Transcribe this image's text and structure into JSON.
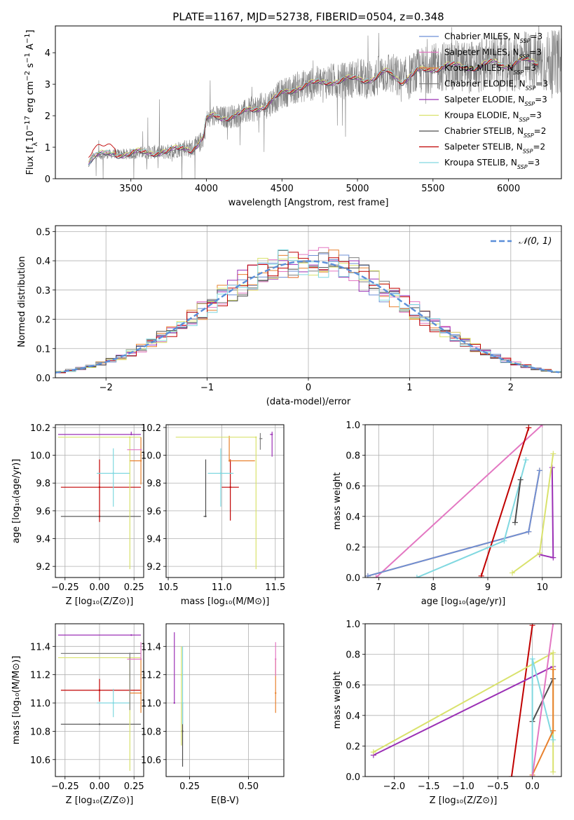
{
  "figure": {
    "title": "PLATE=1167, MJD=52738, FIBERID=0504, z=0.348"
  },
  "colors": {
    "Chabrier MILES": "#6e8fd6",
    "Salpeter MILES": "#e377c2",
    "Kroupa MILES": "#e8812e",
    "Chabrier ELODIE": "#7f7f7f",
    "Salpeter ELODIE": "#9b30b5",
    "Kroupa ELODIE": "#d9e26c",
    "Chabrier STELIB": "#4d4d4d",
    "Salpeter STELIB": "#c00000",
    "Kroupa STELIB": "#80d8e0",
    "normal_curve": "#5b8fd9"
  },
  "chart_data": [
    {
      "id": "spectrum",
      "type": "line",
      "title": "PLATE=1167, MJD=52738, FIBERID=0504, z=0.348",
      "xlabel": "wavelength [Angstrom, rest frame]",
      "ylabel_parts": [
        "Flux [f",
        "λ",
        "10",
        "−17",
        " erg cm",
        "−2",
        " s",
        "−1",
        " A",
        "−1",
        "]"
      ],
      "xlim": [
        3000,
        6350
      ],
      "ylim": [
        0,
        4.85
      ],
      "xticks": [
        "3500",
        "4000",
        "4500",
        "5000",
        "5500",
        "6000"
      ],
      "xtick_values": [
        3500,
        4000,
        4500,
        5000,
        5500,
        6000
      ],
      "yticks": [
        "0",
        "1",
        "2",
        "3",
        "4"
      ],
      "ytick_values": [
        0,
        1,
        2,
        3,
        4
      ],
      "legend_position": "top-right",
      "legend": [
        {
          "label": "Chabrier MILES, N",
          "sub": "SSP",
          "tail": "=3",
          "color_key": "Chabrier MILES"
        },
        {
          "label": "Salpeter MILES, N",
          "sub": "SSP",
          "tail": "=3",
          "color_key": "Salpeter MILES"
        },
        {
          "label": "Kroupa MILES, N",
          "sub": "SSP",
          "tail": "=3",
          "color_key": "Kroupa MILES"
        },
        {
          "label": "Chabrier ELODIE, N",
          "sub": "SSP",
          "tail": "=3",
          "color_key": "Chabrier ELODIE"
        },
        {
          "label": "Salpeter ELODIE, N",
          "sub": "SSP",
          "tail": "=3",
          "color_key": "Salpeter ELODIE"
        },
        {
          "label": "Kroupa ELODIE, N",
          "sub": "SSP",
          "tail": "=3",
          "color_key": "Kroupa ELODIE"
        },
        {
          "label": "Chabrier STELIB, N",
          "sub": "SSP",
          "tail": "=2",
          "color_key": "Chabrier STELIB"
        },
        {
          "label": "Salpeter STELIB, N",
          "sub": "SSP",
          "tail": "=2",
          "color_key": "Salpeter STELIB"
        },
        {
          "label": "Kroupa STELIB, N",
          "sub": "SSP",
          "tail": "=3",
          "color_key": "Kroupa STELIB"
        }
      ],
      "model_continuum": {
        "x": [
          3220,
          3250,
          3300,
          3400,
          3480,
          3550,
          3650,
          3750,
          3850,
          3900,
          3950,
          3980,
          4000,
          4050,
          4100,
          4200,
          4300,
          4400,
          4500,
          4600,
          4700,
          4800,
          4900,
          5000,
          5100,
          5200,
          5300,
          5400,
          5500,
          5600,
          5700,
          5800,
          5900,
          6000,
          6100,
          6200
        ],
        "y": [
          0.5,
          0.7,
          0.75,
          0.8,
          0.78,
          0.82,
          0.85,
          0.85,
          1.0,
          0.95,
          1.1,
          1.3,
          1.85,
          2.0,
          1.95,
          2.0,
          2.2,
          2.35,
          2.7,
          2.9,
          3.0,
          3.1,
          3.1,
          3.2,
          3.15,
          3.4,
          3.1,
          3.4,
          3.5,
          3.6,
          3.55,
          3.55,
          3.7,
          3.6,
          3.75,
          3.7
        ]
      },
      "data_range": [
        3220,
        6350
      ]
    },
    {
      "id": "residuals",
      "type": "bar",
      "xlabel": "(data-model)/error",
      "ylabel": "Normed distribution",
      "xlim": [
        -2.5,
        2.5
      ],
      "ylim": [
        0,
        0.52
      ],
      "xticks": [
        "−2",
        "−1",
        "0",
        "1",
        "2"
      ],
      "xtick_values": [
        -2,
        -1,
        0,
        1,
        2
      ],
      "yticks": [
        "0.0",
        "0.1",
        "0.2",
        "0.3",
        "0.4",
        "0.5"
      ],
      "ytick_values": [
        0,
        0.1,
        0.2,
        0.3,
        0.4,
        0.5
      ],
      "legend_position": "top-right",
      "legend_label": "𝒩(0, 1)",
      "bin_width": 0.1,
      "normal_curve": {
        "mean": 0,
        "sigma": 1
      }
    },
    {
      "id": "age-vs-Z",
      "type": "scatter",
      "xlabel": "Z [log₁₀(Z/Z⊙)]",
      "ylabel": "age  [log₁₀(age/yr)]",
      "xlim": [
        -0.32,
        0.32
      ],
      "ylim": [
        9.12,
        10.22
      ],
      "xticks": [
        "−0.25",
        "0.00",
        "0.25"
      ],
      "xtick_values": [
        -0.25,
        0,
        0.25
      ],
      "yticks": [
        "9.2",
        "9.4",
        "9.6",
        "9.8",
        "10.0",
        "10.2"
      ],
      "ytick_values": [
        9.2,
        9.4,
        9.6,
        9.8,
        10.0,
        10.2
      ],
      "points": [
        {
          "series": "Chabrier STELIB",
          "x": 0.0,
          "y": 9.56,
          "xerr": [
            0.28,
            0.3
          ],
          "yerr": [
            0,
            0
          ]
        },
        {
          "series": "Salpeter STELIB",
          "x": 0.0,
          "y": 9.77,
          "xerr": [
            0.28,
            0.3
          ],
          "yerr": [
            0.25,
            0.2
          ]
        },
        {
          "series": "Kroupa STELIB",
          "x": 0.1,
          "y": 9.87,
          "xerr": [
            0.12,
            0.12
          ],
          "yerr": [
            0.24,
            0.18
          ]
        },
        {
          "series": "Kroupa ELODIE",
          "x": 0.22,
          "y": 10.13,
          "xerr": [
            0.52,
            0.08
          ],
          "yerr": [
            0.95,
            0.0
          ]
        },
        {
          "series": "Salpeter ELODIE",
          "x": 0.23,
          "y": 10.15,
          "xerr": [
            0.53,
            0.07
          ],
          "yerr": [
            0,
            0.02
          ]
        },
        {
          "series": "Kroupa MILES",
          "x": 0.3,
          "y": 9.96,
          "xerr": [
            0.08,
            0.0
          ],
          "yerr": [
            0.17,
            0.17
          ]
        },
        {
          "series": "Salpeter MILES",
          "x": 0.3,
          "y": 10.04,
          "xerr": [
            0.1,
            0.0
          ],
          "yerr": [
            0,
            0
          ]
        }
      ]
    },
    {
      "id": "age-vs-mass",
      "type": "scatter",
      "xlabel": "mass [log₁₀(M/M⊙)]",
      "ylabel": "",
      "xlim": [
        10.48,
        11.58
      ],
      "ylim": [
        9.12,
        10.22
      ],
      "xticks": [
        "10.5",
        "11.0",
        "11.5"
      ],
      "xtick_values": [
        10.5,
        11.0,
        11.5
      ],
      "yticks": [
        "9.2",
        "9.4",
        "9.6",
        "9.8",
        "10.0",
        "10.2"
      ],
      "ytick_values": [
        9.2,
        9.4,
        9.6,
        9.8,
        10.0,
        10.2
      ],
      "points": [
        {
          "series": "Chabrier STELIB",
          "x": 10.85,
          "y": 9.56,
          "xerr": [
            0.02,
            0.0
          ],
          "yerr": [
            0.0,
            0.41
          ]
        },
        {
          "series": "Salpeter STELIB",
          "x": 11.08,
          "y": 9.77,
          "xerr": [
            0.08,
            0.08
          ],
          "yerr": [
            0.24,
            0.2
          ]
        },
        {
          "series": "Kroupa STELIB",
          "x": 10.99,
          "y": 9.87,
          "xerr": [
            0.12,
            0.12
          ],
          "yerr": [
            0.24,
            0.18
          ]
        },
        {
          "series": "Kroupa MILES",
          "x": 11.07,
          "y": 9.96,
          "xerr": [
            0.0,
            0.24
          ],
          "yerr": [
            0.0,
            0.18
          ]
        },
        {
          "series": "Kroupa ELODIE",
          "x": 11.32,
          "y": 10.13,
          "xerr": [
            0.75,
            0.0
          ],
          "yerr": [
            0.95,
            0.0
          ]
        },
        {
          "series": "Salpeter ELODIE",
          "x": 11.47,
          "y": 10.15,
          "xerr": [
            0.02,
            0.0
          ],
          "yerr": [
            0.16,
            0.02
          ]
        },
        {
          "series": "Chabrier ELODIE",
          "x": 11.36,
          "y": 10.12,
          "xerr": [
            0.0,
            0.02
          ],
          "yerr": [
            0.08,
            0.04
          ]
        }
      ]
    },
    {
      "id": "mass-weight-vs-age",
      "type": "line",
      "xlabel": "age  [log₁₀(age/yr)]",
      "ylabel": "mass weight",
      "xlim": [
        6.75,
        10.35
      ],
      "ylim": [
        0,
        1
      ],
      "xticks": [
        "7",
        "8",
        "9",
        "10"
      ],
      "xtick_values": [
        7,
        8,
        9,
        10
      ],
      "yticks": [
        "0.0",
        "0.2",
        "0.4",
        "0.6",
        "0.8",
        "1.0"
      ],
      "ytick_values": [
        0,
        0.2,
        0.4,
        0.6,
        0.8,
        1.0
      ],
      "series": [
        {
          "name": "Salpeter MILES",
          "x": [
            6.95,
            10.0
          ],
          "y": [
            0.0,
            1.0
          ]
        },
        {
          "name": "Kroupa MILES",
          "x": [
            6.8,
            9.75,
            9.95
          ],
          "y": [
            0.01,
            0.3,
            0.7
          ]
        },
        {
          "name": "Chabrier MILES",
          "x": [
            6.8,
            9.75,
            9.95
          ],
          "y": [
            0.01,
            0.3,
            0.7
          ]
        },
        {
          "name": "Salpeter STELIB",
          "x": [
            8.88,
            9.75
          ],
          "y": [
            0.01,
            0.98
          ]
        },
        {
          "name": "Kroupa STELIB",
          "x": [
            7.7,
            9.3,
            9.7
          ],
          "y": [
            0.0,
            0.24,
            0.77
          ]
        },
        {
          "name": "Chabrier STELIB",
          "x": [
            9.5,
            9.6
          ],
          "y": [
            0.36,
            0.64
          ]
        },
        {
          "name": "Salpeter ELODIE",
          "x": [
            9.95,
            10.2,
            10.18
          ],
          "y": [
            0.15,
            0.13,
            0.72
          ]
        },
        {
          "name": "Kroupa ELODIE",
          "x": [
            9.45,
            9.95,
            10.2
          ],
          "y": [
            0.03,
            0.16,
            0.81
          ]
        }
      ]
    },
    {
      "id": "mass-vs-Z",
      "type": "scatter",
      "xlabel": "Z [log₁₀(Z/Z⊙)]",
      "ylabel": "mass [log₁₀(M/M⊙)]",
      "xlim": [
        -0.32,
        0.32
      ],
      "ylim": [
        10.48,
        11.56
      ],
      "xticks": [
        "−0.25",
        "0.00",
        "0.25"
      ],
      "xtick_values": [
        -0.25,
        0,
        0.25
      ],
      "yticks": [
        "10.6",
        "10.8",
        "11.0",
        "11.2",
        "11.4"
      ],
      "ytick_values": [
        10.6,
        10.8,
        11.0,
        11.2,
        11.4
      ],
      "points": [
        {
          "series": "Chabrier STELIB",
          "x": 0.0,
          "y": 10.85,
          "xerr": [
            0.28,
            0.3
          ],
          "yerr": [
            0,
            0
          ]
        },
        {
          "series": "Salpeter STELIB",
          "x": 0.0,
          "y": 11.09,
          "xerr": [
            0.28,
            0.3
          ],
          "yerr": [
            0.08,
            0.08
          ]
        },
        {
          "series": "Kroupa STELIB",
          "x": 0.1,
          "y": 11.0,
          "xerr": [
            0.12,
            0.12
          ],
          "yerr": [
            0.1,
            0.1
          ]
        },
        {
          "series": "Kroupa ELODIE",
          "x": 0.22,
          "y": 11.32,
          "xerr": [
            0.52,
            0.08
          ],
          "yerr": [
            0.8,
            0.0
          ]
        },
        {
          "series": "Salpeter ELODIE",
          "x": 0.23,
          "y": 11.48,
          "xerr": [
            0.53,
            0.07
          ],
          "yerr": [
            0,
            0
          ]
        },
        {
          "series": "Chabrier ELODIE",
          "x": 0.22,
          "y": 11.35,
          "xerr": [
            0.5,
            0.08
          ],
          "yerr": [
            0.4,
            0.0
          ]
        },
        {
          "series": "Kroupa MILES",
          "x": 0.3,
          "y": 11.07,
          "xerr": [
            0.08,
            0.0
          ],
          "yerr": [
            0.14,
            0.24
          ]
        },
        {
          "series": "Salpeter MILES",
          "x": 0.3,
          "y": 11.31,
          "xerr": [
            0.1,
            0.0
          ],
          "yerr": [
            0.0,
            0.12
          ]
        }
      ]
    },
    {
      "id": "mass-vs-EBV",
      "type": "scatter",
      "xlabel": "E(B-V)",
      "ylabel": "",
      "xlim": [
        0.15,
        0.65
      ],
      "ylim": [
        10.48,
        11.56
      ],
      "xticks": [
        "0.25",
        "0.50"
      ],
      "xtick_values": [
        0.25,
        0.5
      ],
      "yticks": [
        "10.6",
        "10.8",
        "11.0",
        "11.2",
        "11.4"
      ],
      "ytick_values": [
        10.6,
        10.8,
        11.0,
        11.2,
        11.4
      ],
      "points": [
        {
          "series": "Salpeter ELODIE",
          "x": 0.185,
          "y": 11.0,
          "xerr": [
            0,
            0
          ],
          "yerr": [
            0.0,
            0.5
          ]
        },
        {
          "series": "Kroupa ELODIE",
          "x": 0.215,
          "y": 11.2,
          "xerr": [
            0,
            0
          ],
          "yerr": [
            0.5,
            0.2
          ]
        },
        {
          "series": "Chabrier STELIB",
          "x": 0.22,
          "y": 10.8,
          "xerr": [
            0,
            0
          ],
          "yerr": [
            0.25,
            0.2
          ]
        },
        {
          "series": "Kroupa STELIB",
          "x": 0.22,
          "y": 11.0,
          "xerr": [
            0,
            0
          ],
          "yerr": [
            0.15,
            0.4
          ]
        },
        {
          "series": "Kroupa MILES",
          "x": 0.615,
          "y": 11.07,
          "xerr": [
            0,
            0
          ],
          "yerr": [
            0.14,
            0.24
          ]
        },
        {
          "series": "Salpeter MILES",
          "x": 0.615,
          "y": 11.31,
          "xerr": [
            0,
            0
          ],
          "yerr": [
            0.12,
            0.12
          ]
        }
      ]
    },
    {
      "id": "mass-weight-vs-Z",
      "type": "line",
      "xlabel": "Z [log₁₀(Z/Z⊙)]",
      "ylabel": "mass weight",
      "xlim": [
        -2.42,
        0.42
      ],
      "ylim": [
        0,
        1
      ],
      "xticks": [
        "−2.0",
        "−1.5",
        "−1.0",
        "−0.5",
        "0.0"
      ],
      "xtick_values": [
        -2.0,
        -1.5,
        -1.0,
        -0.5,
        0.0
      ],
      "yticks": [
        "0.0",
        "0.2",
        "0.4",
        "0.6",
        "0.8",
        "1.0"
      ],
      "ytick_values": [
        0,
        0.2,
        0.4,
        0.6,
        0.8,
        1.0
      ],
      "series": [
        {
          "name": "Salpeter STELIB",
          "x": [
            -0.3,
            0.0
          ],
          "y": [
            0.0,
            0.99
          ]
        },
        {
          "name": "Salpeter ELODIE",
          "x": [
            -2.3,
            0.3
          ],
          "y": [
            0.14,
            0.72
          ]
        },
        {
          "name": "Kroupa ELODIE",
          "x": [
            -2.3,
            0.3,
            0.3
          ],
          "y": [
            0.16,
            0.81,
            0.03
          ]
        },
        {
          "name": "Chabrier STELIB",
          "x": [
            0.0,
            0.3
          ],
          "y": [
            0.36,
            0.64
          ]
        },
        {
          "name": "Kroupa STELIB",
          "x": [
            0.0,
            0.0,
            0.3
          ],
          "y": [
            0.0,
            0.77,
            0.24
          ]
        },
        {
          "name": "Kroupa MILES",
          "x": [
            0.0,
            0.3,
            0.3
          ],
          "y": [
            0.01,
            0.3,
            0.7
          ]
        },
        {
          "name": "Salpeter MILES",
          "x": [
            0.0,
            0.3
          ],
          "y": [
            0.0,
            1.0
          ]
        }
      ]
    }
  ]
}
